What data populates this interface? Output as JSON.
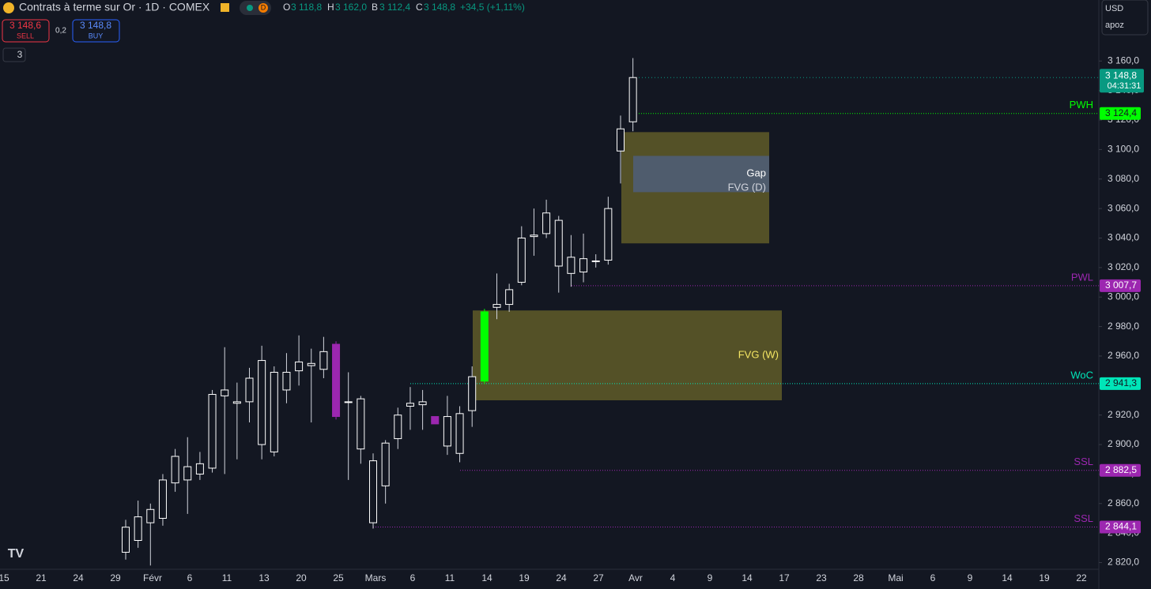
{
  "header": {
    "symbol": "Contrats à terme sur Or · 1D · COMEX",
    "badge": "D",
    "ohlc": [
      {
        "key": "O",
        "value": "3 118,8"
      },
      {
        "key": "H",
        "value": "3 162,0"
      },
      {
        "key": "B",
        "value": "3 112,4"
      },
      {
        "key": "C",
        "value": "3 148,8"
      }
    ],
    "change": "+34,5 (+1,11%)",
    "sell_price": "3 148,6",
    "sell": "SELL",
    "spread": "0,2",
    "buy_price": "3 148,8",
    "buy": "BUY",
    "indicators": "3",
    "currency": "USD",
    "user": "apoz"
  },
  "chart_data": {
    "type": "candlestick",
    "open": [
      2827,
      2835,
      2847,
      2850,
      2874,
      2876,
      2880,
      2884,
      2933,
      2928,
      2929,
      2900,
      2895,
      2937,
      2950,
      2953.5,
      2951,
      2968,
      2929,
      2931,
      2847,
      2872,
      2904,
      2926,
      2927,
      2919,
      2899,
      2894,
      2923,
      2943,
      2993,
      2995,
      3010,
      3041,
      3043,
      3052,
      3016,
      3017,
      3024,
      3025,
      3099,
      3118.8
    ],
    "high": [
      2849,
      2862,
      2860,
      2880,
      2897,
      2905,
      2895,
      2937,
      2966,
      2942,
      2952,
      2967,
      2953,
      2962,
      2974,
      2965,
      2973,
      2970,
      2949,
      2933,
      2894,
      2903,
      2925,
      2939,
      2937,
      2919,
      2933,
      2926,
      2953,
      2992,
      3016,
      3009,
      3048,
      3060,
      3066,
      3055,
      3042,
      3043,
      3029,
      3068,
      3123,
      3162
    ],
    "low": [
      2822,
      2830,
      2818,
      2845,
      2868,
      2853,
      2876,
      2881,
      2880,
      2890,
      2915,
      2890,
      2892,
      2928,
      2940,
      2915,
      2945,
      2917,
      2876,
      2887,
      2843,
      2860,
      2897,
      2910,
      2910,
      2914,
      2893,
      2888,
      2912,
      2941,
      2985,
      2990,
      3008,
      3028,
      3040,
      3003,
      3007,
      3010,
      3020,
      3022,
      3077,
      3112.4
    ],
    "close": [
      2844,
      2851,
      2856,
      2876,
      2892,
      2885,
      2887,
      2934,
      2937,
      2929,
      2945,
      2957,
      2949,
      2949,
      2956,
      2955,
      2963,
      2919,
      2929,
      2897,
      2889,
      2901,
      2920,
      2928,
      2929,
      2914,
      2919,
      2921,
      2946,
      2990,
      2995,
      3005,
      3040,
      3042,
      3057,
      3021,
      3027,
      3026,
      3024.5,
      3060,
      3114,
      3148.8
    ],
    "colors": [
      "#ffffff",
      "#ffffff",
      "#ffffff",
      "#ffffff",
      "#ffffff",
      "#ffffff",
      "#ffffff",
      "#ffffff",
      "#ffffff",
      "#ffffff",
      "#ffffff",
      "#ffffff",
      "#ffffff",
      "#ffffff",
      "#ffffff",
      "#ffffff",
      "#ffffff",
      "#9c27b0",
      "#ffffff",
      "#ffffff",
      "#ffffff",
      "#ffffff",
      "#ffffff",
      "#ffffff",
      "#ffffff",
      "#9c27b0",
      "#ffffff",
      "#ffffff",
      "#ffffff",
      "#00ff00",
      "#ffffff",
      "#ffffff",
      "#ffffff",
      "#ffffff",
      "#ffffff",
      "#ffffff",
      "#ffffff",
      "#ffffff",
      "#ffffff",
      "#ffffff",
      "#ffffff",
      "#ffffff"
    ],
    "ylim": [
      2816,
      3173
    ],
    "yticks": [
      {
        "value": 2820,
        "label": "2 820,0"
      },
      {
        "value": 2840,
        "label": "2 840,0"
      },
      {
        "value": 2860,
        "label": "2 860,0"
      },
      {
        "value": 2880,
        "label": "2 880,0"
      },
      {
        "value": 2900,
        "label": "2 900,0"
      },
      {
        "value": 2920,
        "label": "2 920,0"
      },
      {
        "value": 2940,
        "label": "2 940,0"
      },
      {
        "value": 2960,
        "label": "2 960,0"
      },
      {
        "value": 2980,
        "label": "2 980,0"
      },
      {
        "value": 3000,
        "label": "3 000,0"
      },
      {
        "value": 3020,
        "label": "3 020,0"
      },
      {
        "value": 3040,
        "label": "3 040,0"
      },
      {
        "value": 3060,
        "label": "3 060,0"
      },
      {
        "value": 3080,
        "label": "3 080,0"
      },
      {
        "value": 3100,
        "label": "3 100,0"
      },
      {
        "value": 3120,
        "label": "3 120,0"
      },
      {
        "value": 3140,
        "label": "3 140,0"
      },
      {
        "value": 3160,
        "label": "3 160,0"
      }
    ],
    "xtick_labels": [
      "15",
      "21",
      "24",
      "29",
      "Févr",
      "6",
      "11",
      "13",
      "20",
      "25",
      "Mars",
      "6",
      "11",
      "14",
      "19",
      "24",
      "27",
      "Avr",
      "4",
      "9",
      "14",
      "17",
      "23",
      "28",
      "Mai",
      "6",
      "9",
      "14",
      "19",
      "22"
    ],
    "zones": [
      {
        "label": "FVG (D)",
        "top": 3111.8,
        "bottom": 3036.4,
        "color": "#5c5828"
      },
      {
        "label": "Gap",
        "top": 3095.7,
        "bottom": 3071.1,
        "color": "#4f5d75"
      },
      {
        "label": "FVG (W)",
        "top": 2990.9,
        "bottom": 2930,
        "color": "#5c5828"
      }
    ],
    "levels": [
      {
        "label": "PWH",
        "value": 3124.4,
        "value_label": "3 124,4",
        "color": "#00ff00"
      },
      {
        "label": "PWL",
        "value": 3007.7,
        "value_label": "3 007,7",
        "color": "#9c27b0"
      },
      {
        "label": "WoC",
        "value": 2941.3,
        "value_label": "2 941,3",
        "color": "#00e5b8"
      },
      {
        "label": "SSL",
        "value": 2882.5,
        "value_label": "2 882,5",
        "color": "#9c27b0"
      },
      {
        "label": "SSL",
        "value": 2844.1,
        "value_label": "2 844,1",
        "color": "#9c27b0"
      }
    ],
    "last_price": 3148.8,
    "last_price_label": "3 148,8",
    "countdown": "04:31:31",
    "last_color": "#089981"
  }
}
